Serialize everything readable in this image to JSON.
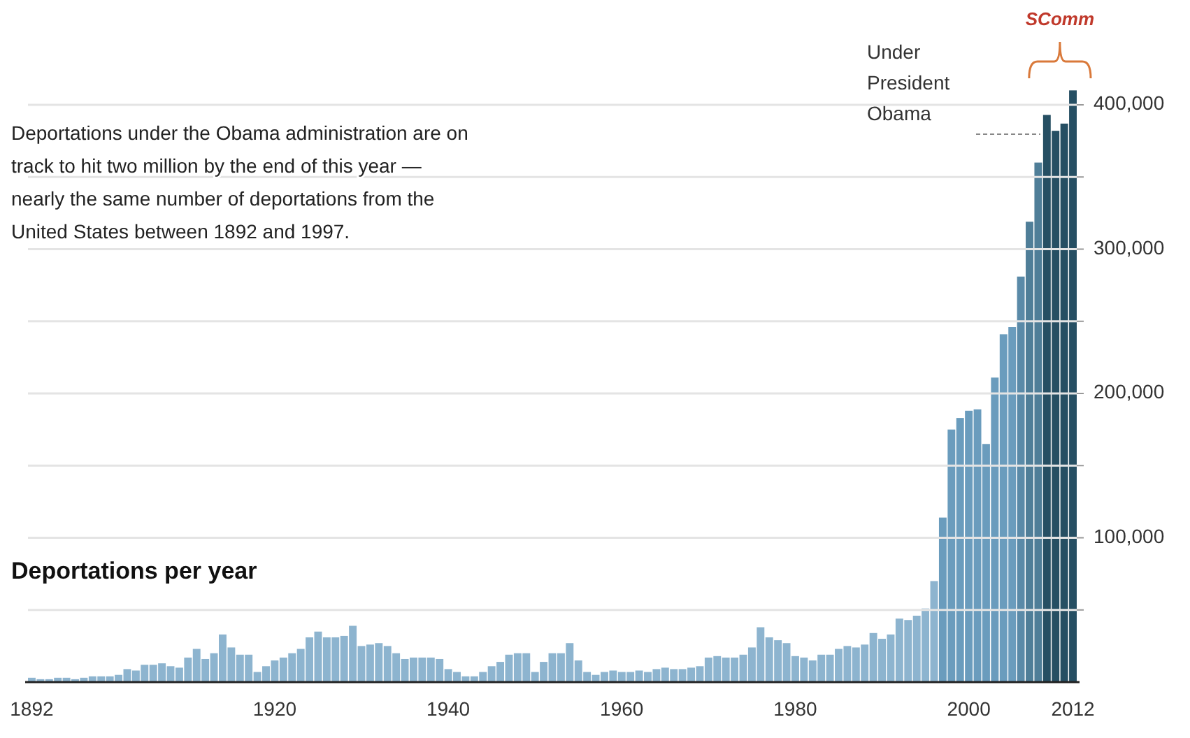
{
  "chart_data": {
    "type": "bar",
    "title": "Deportations per year",
    "subtitle": "Deportations under the Obama administration are on track to hit two million by the end of this year — nearly the same number of deportations from the United States between 1892 and 1997.",
    "categories": [
      "1892",
      null,
      null,
      null,
      null,
      null,
      null,
      null,
      null,
      null,
      null,
      null,
      null,
      null,
      null,
      null,
      null,
      null,
      null,
      null,
      null,
      null,
      null,
      null,
      null,
      null,
      null,
      null,
      "1920",
      null,
      null,
      null,
      null,
      null,
      null,
      null,
      null,
      null,
      null,
      null,
      null,
      null,
      null,
      null,
      null,
      null,
      null,
      null,
      "1940",
      null,
      null,
      null,
      null,
      null,
      null,
      null,
      null,
      null,
      null,
      null,
      null,
      null,
      null,
      null,
      null,
      null,
      null,
      null,
      "1960",
      null,
      null,
      null,
      null,
      null,
      null,
      null,
      null,
      null,
      null,
      null,
      null,
      null,
      null,
      null,
      null,
      null,
      null,
      null,
      "1980",
      null,
      null,
      null,
      null,
      null,
      null,
      null,
      null,
      null,
      null,
      null,
      null,
      null,
      null,
      null,
      null,
      null,
      null,
      null,
      "2000",
      null,
      null,
      null,
      null,
      null,
      null,
      null,
      null,
      null,
      null,
      null,
      "2012"
    ],
    "values": [
      3000,
      2000,
      2000,
      3000,
      3000,
      2000,
      3000,
      4000,
      4000,
      4000,
      5000,
      9000,
      8000,
      12000,
      12000,
      13000,
      11000,
      10000,
      17000,
      23000,
      16000,
      20000,
      33000,
      24000,
      19000,
      19000,
      7000,
      11000,
      15000,
      17000,
      20000,
      23000,
      31000,
      35000,
      31000,
      31000,
      32000,
      39000,
      25000,
      26000,
      27000,
      25000,
      20000,
      16000,
      17000,
      17000,
      17000,
      16000,
      9000,
      7000,
      4000,
      4000,
      7000,
      11000,
      14000,
      19000,
      20000,
      20000,
      7000,
      14000,
      20000,
      20000,
      27000,
      15000,
      7000,
      5000,
      7000,
      8000,
      7000,
      7000,
      8000,
      7000,
      9000,
      10000,
      9000,
      9000,
      10000,
      11000,
      17000,
      18000,
      17000,
      17000,
      19000,
      24000,
      38000,
      31000,
      29000,
      27000,
      18000,
      17000,
      15000,
      19000,
      19000,
      23000,
      25000,
      24000,
      26000,
      34000,
      30000,
      33000,
      44000,
      43000,
      46000,
      51000,
      70000,
      114000,
      175000,
      183000,
      188000,
      189000,
      165000,
      211000,
      241000,
      246000,
      281000,
      319000,
      360000,
      393000,
      382000,
      387000,
      410000
    ],
    "colors": [
      "#8db4cf",
      "#8db4cf",
      "#8db4cf",
      "#8db4cf",
      "#8db4cf",
      "#8db4cf",
      "#8db4cf",
      "#8db4cf",
      "#8db4cf",
      "#8db4cf",
      "#8db4cf",
      "#8db4cf",
      "#8db4cf",
      "#8db4cf",
      "#8db4cf",
      "#8db4cf",
      "#8db4cf",
      "#8db4cf",
      "#8db4cf",
      "#8db4cf",
      "#8db4cf",
      "#8db4cf",
      "#8db4cf",
      "#8db4cf",
      "#8db4cf",
      "#8db4cf",
      "#8db4cf",
      "#8db4cf",
      "#8db4cf",
      "#8db4cf",
      "#8db4cf",
      "#8db4cf",
      "#8db4cf",
      "#8db4cf",
      "#8db4cf",
      "#8db4cf",
      "#8db4cf",
      "#8db4cf",
      "#8db4cf",
      "#8db4cf",
      "#8db4cf",
      "#8db4cf",
      "#8db4cf",
      "#8db4cf",
      "#8db4cf",
      "#8db4cf",
      "#8db4cf",
      "#8db4cf",
      "#8db4cf",
      "#8db4cf",
      "#8db4cf",
      "#8db4cf",
      "#8db4cf",
      "#8db4cf",
      "#8db4cf",
      "#8db4cf",
      "#8db4cf",
      "#8db4cf",
      "#8db4cf",
      "#8db4cf",
      "#8db4cf",
      "#8db4cf",
      "#8db4cf",
      "#8db4cf",
      "#8db4cf",
      "#8db4cf",
      "#8db4cf",
      "#8db4cf",
      "#8db4cf",
      "#8db4cf",
      "#8db4cf",
      "#8db4cf",
      "#8db4cf",
      "#8db4cf",
      "#8db4cf",
      "#8db4cf",
      "#8db4cf",
      "#8db4cf",
      "#8db4cf",
      "#8db4cf",
      "#8db4cf",
      "#8db4cf",
      "#8db4cf",
      "#8db4cf",
      "#8db4cf",
      "#8db4cf",
      "#8db4cf",
      "#8db4cf",
      "#8db4cf",
      "#8db4cf",
      "#8db4cf",
      "#8db4cf",
      "#8db4cf",
      "#8db4cf",
      "#8db4cf",
      "#8db4cf",
      "#8db4cf",
      "#8db4cf",
      "#8db4cf",
      "#8db4cf",
      "#8db4cf",
      "#8db4cf",
      "#8db4cf",
      "#8db4cf",
      "#8db4cf",
      "#6a9cbd",
      "#6a9cbd",
      "#6a9cbd",
      "#6a9cbd",
      "#6a9cbd",
      "#6a9cbd",
      "#6a9cbd",
      "#6a9cbd",
      "#6a9cbd",
      "#5a8aa8",
      "#4f7e98",
      "#4f7e98",
      "#264f63",
      "#264f63",
      "#264f63",
      "#264f63"
    ],
    "ylim": [
      0,
      410000
    ],
    "yticks": [
      {
        "value": 50000,
        "label": null
      },
      {
        "value": 100000,
        "label": "100,000"
      },
      {
        "value": 150000,
        "label": null
      },
      {
        "value": 200000,
        "label": "200,000"
      },
      {
        "value": 250000,
        "label": null
      },
      {
        "value": 300000,
        "label": "300,000"
      },
      {
        "value": 350000,
        "label": null
      },
      {
        "value": 400000,
        "label": "400,000"
      }
    ],
    "grid": "y",
    "annotations": [
      "Under President Obama",
      {
        "text": "SComm"
      }
    ]
  }
}
